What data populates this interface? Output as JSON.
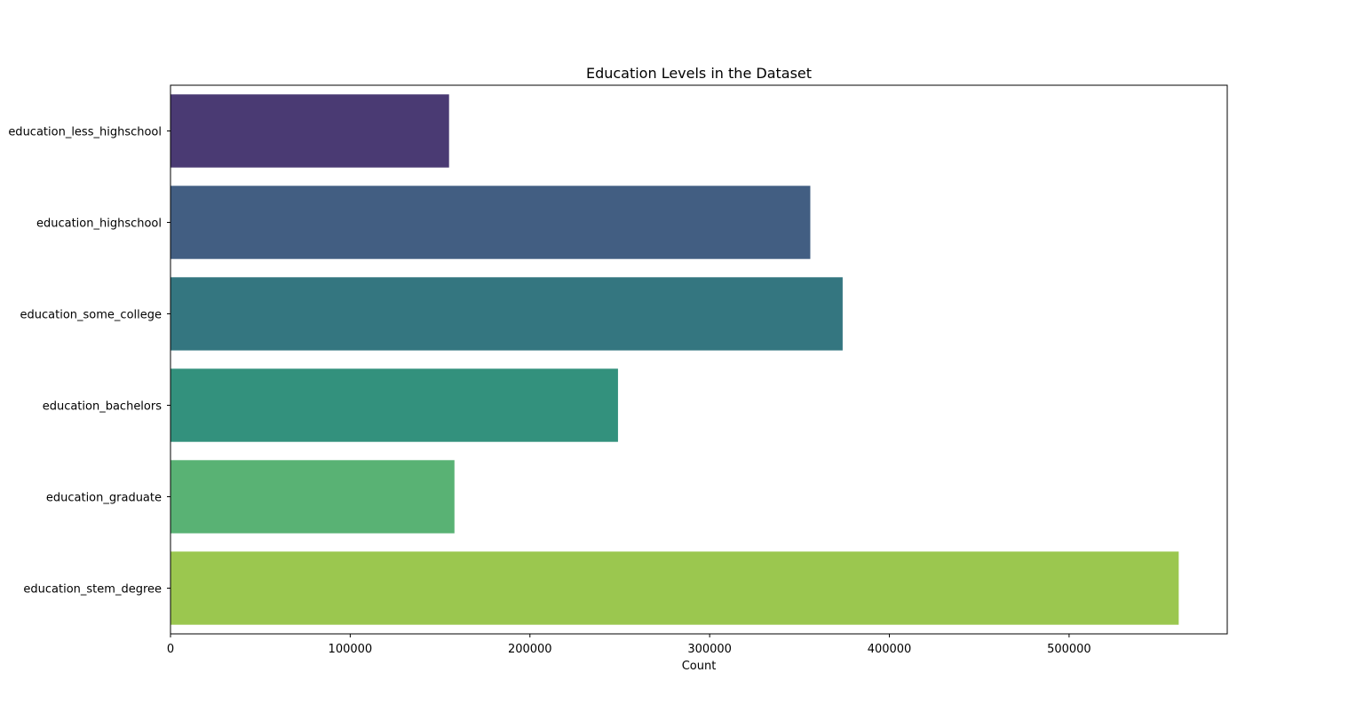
{
  "chart_data": {
    "type": "bar",
    "orientation": "horizontal",
    "title": "Education Levels in the Dataset",
    "xlabel": "Count",
    "ylabel": "",
    "categories": [
      "education_less_highschool",
      "education_highschool",
      "education_some_college",
      "education_bachelors",
      "education_graduate",
      "education_stem_degree"
    ],
    "values": [
      155000,
      356000,
      374000,
      249000,
      158000,
      561000
    ],
    "colors": [
      "#4a3a73",
      "#425e82",
      "#347680",
      "#33917d",
      "#59b274",
      "#9bc74f"
    ],
    "xlim": [
      0,
      588000
    ],
    "xticks": [
      0,
      100000,
      200000,
      300000,
      400000,
      500000
    ],
    "xtick_labels": [
      "0",
      "100000",
      "200000",
      "300000",
      "400000",
      "500000"
    ],
    "grid": false,
    "legend": "none"
  }
}
